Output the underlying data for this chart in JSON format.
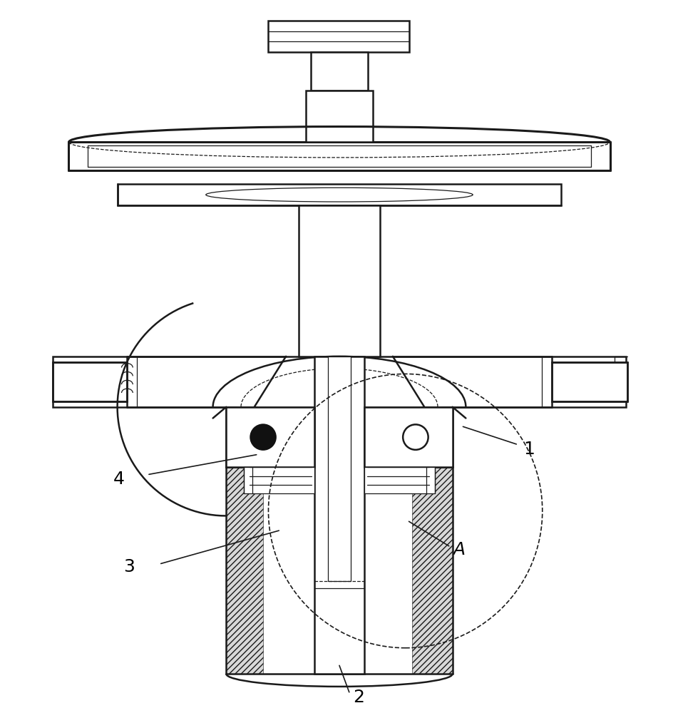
{
  "bg_color": "#ffffff",
  "line_color": "#1a1a1a",
  "label_color": "#000000",
  "font_size_labels": 18,
  "dpi": 100,
  "fig_width": 9.51,
  "fig_height": 10.0
}
